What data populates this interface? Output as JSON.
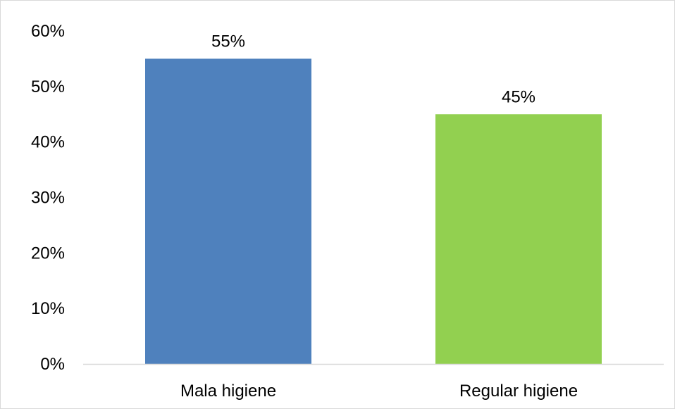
{
  "chart_data": {
    "type": "bar",
    "title": "",
    "xlabel": "",
    "ylabel": "",
    "categories": [
      "Mala higiene",
      "Regular higiene"
    ],
    "values": [
      55,
      45
    ],
    "data_labels": [
      "55%",
      "45%"
    ],
    "bar_colors": [
      "#4f81bd",
      "#92d050"
    ],
    "ylim": [
      0,
      60
    ],
    "y_ticks": [
      0,
      10,
      20,
      30,
      40,
      50,
      60
    ],
    "y_tick_labels": [
      "0%",
      "10%",
      "20%",
      "30%",
      "40%",
      "50%",
      "60%"
    ],
    "grid": false,
    "legend": "none"
  }
}
